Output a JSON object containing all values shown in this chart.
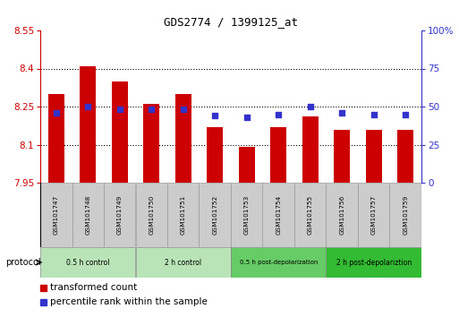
{
  "title": "GDS2774 / 1399125_at",
  "samples": [
    "GSM101747",
    "GSM101748",
    "GSM101749",
    "GSM101750",
    "GSM101751",
    "GSM101752",
    "GSM101753",
    "GSM101754",
    "GSM101755",
    "GSM101756",
    "GSM101757",
    "GSM101759"
  ],
  "transformed_count": [
    8.3,
    8.41,
    8.35,
    8.26,
    8.3,
    8.17,
    8.09,
    8.17,
    8.21,
    8.16,
    8.16,
    8.16
  ],
  "percentile_rank": [
    46,
    50,
    48,
    48,
    48,
    44,
    43,
    45,
    50,
    46,
    45,
    45
  ],
  "y_min": 7.95,
  "y_max": 8.55,
  "y_ticks": [
    7.95,
    8.1,
    8.25,
    8.4,
    8.55
  ],
  "y_tick_labels": [
    "7.95",
    "8.1",
    "8.25",
    "8.4",
    "8.55"
  ],
  "y2_ticks": [
    0,
    25,
    50,
    75,
    100
  ],
  "y2_tick_labels": [
    "0",
    "25",
    "50",
    "75",
    "100%"
  ],
  "grid_lines": [
    8.1,
    8.25,
    8.4
  ],
  "bar_color": "#cc0000",
  "dot_color": "#3333cc",
  "axis_color_left": "#cc0000",
  "axis_color_right": "#3333cc",
  "protocol_groups": [
    {
      "label": "0.5 h control",
      "start": 0,
      "end": 2,
      "color": "#b8e4b8"
    },
    {
      "label": "2 h control",
      "start": 3,
      "end": 5,
      "color": "#b8e4b8"
    },
    {
      "label": "0.5 h post-depolarization",
      "start": 6,
      "end": 8,
      "color": "#66cc66"
    },
    {
      "label": "2 h post-depolariztion",
      "start": 9,
      "end": 11,
      "color": "#33bb33"
    }
  ],
  "legend_red_label": "transformed count",
  "legend_blue_label": "percentile rank within the sample",
  "protocol_label": "protocol",
  "sample_box_color": "#cccccc",
  "sample_box_edge": "#999999",
  "bar_width": 0.5
}
